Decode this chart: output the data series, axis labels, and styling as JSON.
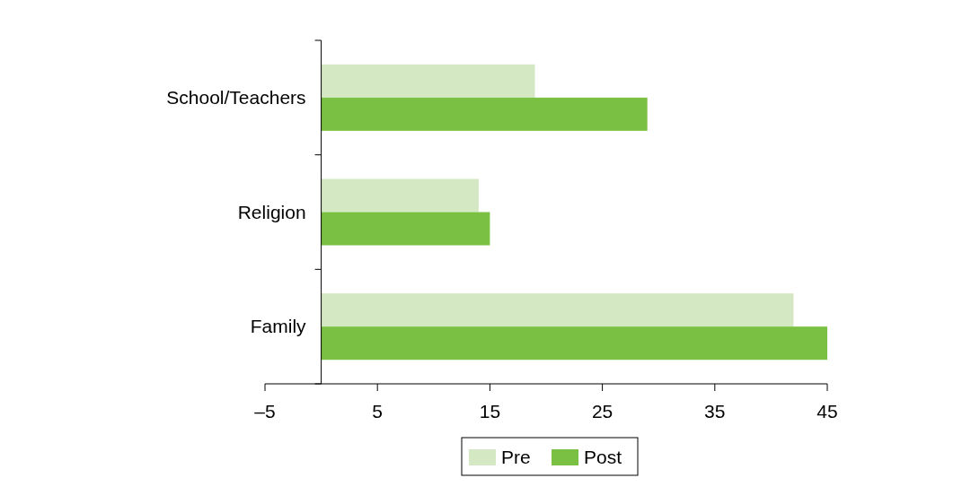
{
  "chart_data": {
    "type": "bar",
    "orientation": "horizontal",
    "categories": [
      "School/Teachers",
      "Religion",
      "Family"
    ],
    "series": [
      {
        "name": "Pre",
        "color": "#d4e8c4",
        "values": [
          19,
          14,
          42
        ]
      },
      {
        "name": "Post",
        "color": "#7ac143",
        "values": [
          29,
          15,
          45
        ]
      }
    ],
    "xlim": [
      -5,
      45
    ],
    "xticks": [
      {
        "value": -5,
        "label": "–5"
      },
      5,
      15,
      25,
      35,
      45
    ],
    "legend": "bottom",
    "grid": false
  }
}
